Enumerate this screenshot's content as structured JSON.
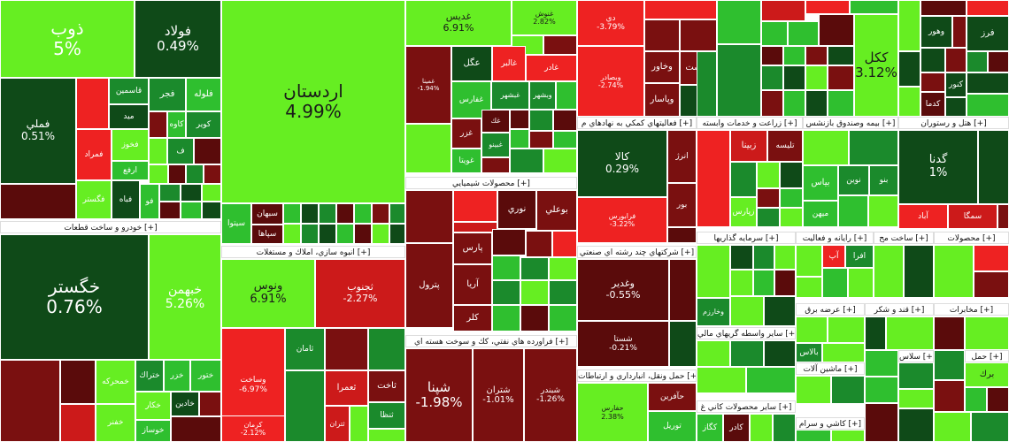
{
  "colors": {
    "dark_green": "#0f4a18",
    "mid_green": "#1b8a2c",
    "green": "#2fbf2f",
    "bright_green": "#66ee22",
    "lime": "#88ff33",
    "dark_red": "#5a0b0b",
    "maroon": "#7a1010",
    "red": "#cc1a1a",
    "bright_red": "#ee2222"
  },
  "headers": [
    {
      "id": "h-auto",
      "label": "خودرو و ساخت قطعات [+]"
    },
    {
      "id": "h-build",
      "label": "انبوه سازي، املاك و مستغلات [+]"
    },
    {
      "id": "h-chem",
      "label": "محصولات شيميايي [+]"
    },
    {
      "id": "h-oil",
      "label": "فراورده هاي نفتي، كك و سوخت هسته اي [+]"
    },
    {
      "id": "h-fin",
      "label": "فعاليتهاي كمكي به نهادهاي م [+]"
    },
    {
      "id": "h-agri",
      "label": "زراعت و خدمات وابسته [+]"
    },
    {
      "id": "h-ins",
      "label": "بيمه وصندوق بازنشس [+]"
    },
    {
      "id": "h-hotel",
      "label": "هتل و رستوران [+]"
    },
    {
      "id": "h-multi",
      "label": "شركتهاي چند رشته اي صنعتي [+]"
    },
    {
      "id": "h-invest",
      "label": "سرمايه گذاريها [+]"
    },
    {
      "id": "h-comp",
      "label": "رايانه و فعاليت [+]"
    },
    {
      "id": "h-const",
      "label": "ساخت مح [+]"
    },
    {
      "id": "h-prod",
      "label": "محصولات [+]"
    },
    {
      "id": "h-trans",
      "label": "حمل ونقل، انبارداري و ارتباطات [+]"
    },
    {
      "id": "h-elec",
      "label": "عرضه برق [+]"
    },
    {
      "id": "h-sugar",
      "label": "قند و شكر [+]"
    },
    {
      "id": "h-telecom",
      "label": "مخابرات [+]"
    },
    {
      "id": "h-otherfin",
      "label": "ساير واسطه گريهاي مالي [+]"
    },
    {
      "id": "h-machine",
      "label": "ماشين آلات [+]"
    },
    {
      "id": "h-mineral",
      "label": "ساير محصولات كاني غ [+]"
    },
    {
      "id": "h-textile",
      "label": "كاشي و سرام [+]"
    },
    {
      "id": "h-misc1",
      "label": "حمل [+]"
    },
    {
      "id": "h-misc2",
      "label": "سلاس [+]"
    }
  ],
  "tiles": [
    {
      "sym": "ذوب",
      "chg": "5%"
    },
    {
      "sym": "فولاد",
      "chg": "0.49%"
    },
    {
      "sym": "اردستان",
      "chg": "4.99%"
    },
    {
      "sym": "غديس",
      "chg": "6.91%"
    },
    {
      "sym": "غنوش",
      "chg": "2.82%"
    },
    {
      "sym": "دي",
      "chg": "-3.79%"
    },
    {
      "sym": "ككل",
      "chg": "3.12%"
    },
    {
      "sym": "فملي",
      "chg": "0.51%"
    },
    {
      "sym": "قاسمين",
      "chg": ""
    },
    {
      "sym": "فجر",
      "chg": ""
    },
    {
      "sym": "فلوله",
      "chg": ""
    },
    {
      "sym": "كاوه",
      "chg": ""
    },
    {
      "sym": "كوير",
      "chg": ""
    },
    {
      "sym": "ف",
      "chg": ""
    },
    {
      "sym": "ميد",
      "chg": ""
    },
    {
      "sym": "فمراد",
      "chg": ""
    },
    {
      "sym": "فخوز",
      "chg": ""
    },
    {
      "sym": "ارفع",
      "chg": ""
    },
    {
      "sym": "فگستر",
      "chg": ""
    },
    {
      "sym": "فباه",
      "chg": ""
    },
    {
      "sym": "فو",
      "chg": ""
    },
    {
      "sym": "خگستر",
      "chg": "0.76%"
    },
    {
      "sym": "خبهمن",
      "chg": "5.26%"
    },
    {
      "sym": "ونوس",
      "chg": "6.91%"
    },
    {
      "sym": "ثجنوب",
      "chg": "-2.27%"
    },
    {
      "sym": "سبهان",
      "chg": ""
    },
    {
      "sym": "سپاها",
      "chg": ""
    },
    {
      "sym": "سيتوا",
      "chg": ""
    },
    {
      "sym": "وساخت",
      "chg": "-6.97%"
    },
    {
      "sym": "ثامان",
      "chg": ""
    },
    {
      "sym": "ثاخت",
      "chg": ""
    },
    {
      "sym": "ثعمرا",
      "chg": ""
    },
    {
      "sym": "ثتران",
      "chg": ""
    },
    {
      "sym": "ثنظا",
      "chg": ""
    },
    {
      "sym": "كرمان",
      "chg": "-2.12%"
    },
    {
      "sym": "خمحركه",
      "chg": ""
    },
    {
      "sym": "ختراك",
      "chg": ""
    },
    {
      "sym": "خزر",
      "chg": ""
    },
    {
      "sym": "ختور",
      "chg": ""
    },
    {
      "sym": "خكار",
      "chg": ""
    },
    {
      "sym": "خادين",
      "chg": ""
    },
    {
      "sym": "خفنر",
      "chg": ""
    },
    {
      "sym": "خوساز",
      "chg": ""
    },
    {
      "sym": "خپارس",
      "chg": ""
    },
    {
      "sym": "عگل",
      "chg": ""
    },
    {
      "sym": "غالبر",
      "chg": ""
    },
    {
      "sym": "غادر",
      "chg": ""
    },
    {
      "sym": "غمينا",
      "chg": "-1.94%"
    },
    {
      "sym": "وبشهر",
      "chg": ""
    },
    {
      "sym": "غبشهر",
      "chg": ""
    },
    {
      "sym": "غفارس",
      "chg": ""
    },
    {
      "sym": "غزر",
      "chg": ""
    },
    {
      "sym": "غك",
      "chg": ""
    },
    {
      "sym": "غبينو",
      "chg": ""
    },
    {
      "sym": "غويتا",
      "chg": ""
    },
    {
      "sym": "نوري",
      "chg": ""
    },
    {
      "sym": "بوعلي",
      "chg": ""
    },
    {
      "sym": "پارس",
      "chg": ""
    },
    {
      "sym": "پترول",
      "chg": ""
    },
    {
      "sym": "آريا",
      "chg": ""
    },
    {
      "sym": "كلر",
      "chg": ""
    },
    {
      "sym": "شپنا",
      "chg": "-1.98%"
    },
    {
      "sym": "شتران",
      "chg": "-1.01%"
    },
    {
      "sym": "شبندر",
      "chg": "-1.26%"
    },
    {
      "sym": "وبصادر",
      "chg": "-2.74%"
    },
    {
      "sym": "وبيست",
      "chg": ""
    },
    {
      "sym": "وخاور",
      "chg": ""
    },
    {
      "sym": "وپاسار",
      "chg": ""
    },
    {
      "sym": "كالا",
      "chg": "0.29%"
    },
    {
      "sym": "فرابورس",
      "chg": "-3.22%"
    },
    {
      "sym": "انرژ",
      "chg": ""
    },
    {
      "sym": "بور",
      "chg": ""
    },
    {
      "sym": "زبينا",
      "chg": ""
    },
    {
      "sym": "تليسه",
      "chg": ""
    },
    {
      "sym": "زپارس",
      "chg": ""
    },
    {
      "sym": "زشگزا",
      "chg": ""
    },
    {
      "sym": "بياس",
      "chg": ""
    },
    {
      "sym": "نوين",
      "chg": ""
    },
    {
      "sym": "بنو",
      "chg": ""
    },
    {
      "sym": "ميهن",
      "chg": ""
    },
    {
      "sym": "گدنا",
      "chg": "1%"
    },
    {
      "sym": "آباد",
      "chg": ""
    },
    {
      "sym": "سمگا",
      "chg": ""
    },
    {
      "sym": "وغدير",
      "chg": "-0.55%"
    },
    {
      "sym": "شستا",
      "chg": "-0.21%"
    },
    {
      "sym": "وخارزم",
      "chg": ""
    },
    {
      "sym": "حآفرين",
      "chg": ""
    },
    {
      "sym": "توريل",
      "chg": ""
    },
    {
      "sym": "حفارس",
      "chg": "2.38%"
    },
    {
      "sym": "كگاز",
      "chg": ""
    },
    {
      "sym": "كادر",
      "chg": ""
    },
    {
      "sym": "افرا",
      "chg": ""
    },
    {
      "sym": "آپ",
      "chg": ""
    },
    {
      "sym": "دتهران",
      "chg": ""
    },
    {
      "sym": "حخزر",
      "chg": ""
    },
    {
      "sym": "برك",
      "chg": ""
    },
    {
      "sym": "كدما",
      "chg": ""
    },
    {
      "sym": "كنور",
      "chg": ""
    },
    {
      "sym": "كفر",
      "chg": ""
    },
    {
      "sym": "فرز",
      "chg": ""
    },
    {
      "sym": "دكا",
      "chg": ""
    },
    {
      "sym": "كجاد",
      "chg": ""
    },
    {
      "sym": "وهور",
      "chg": ""
    },
    {
      "sym": "بالاس",
      "chg": ""
    }
  ]
}
